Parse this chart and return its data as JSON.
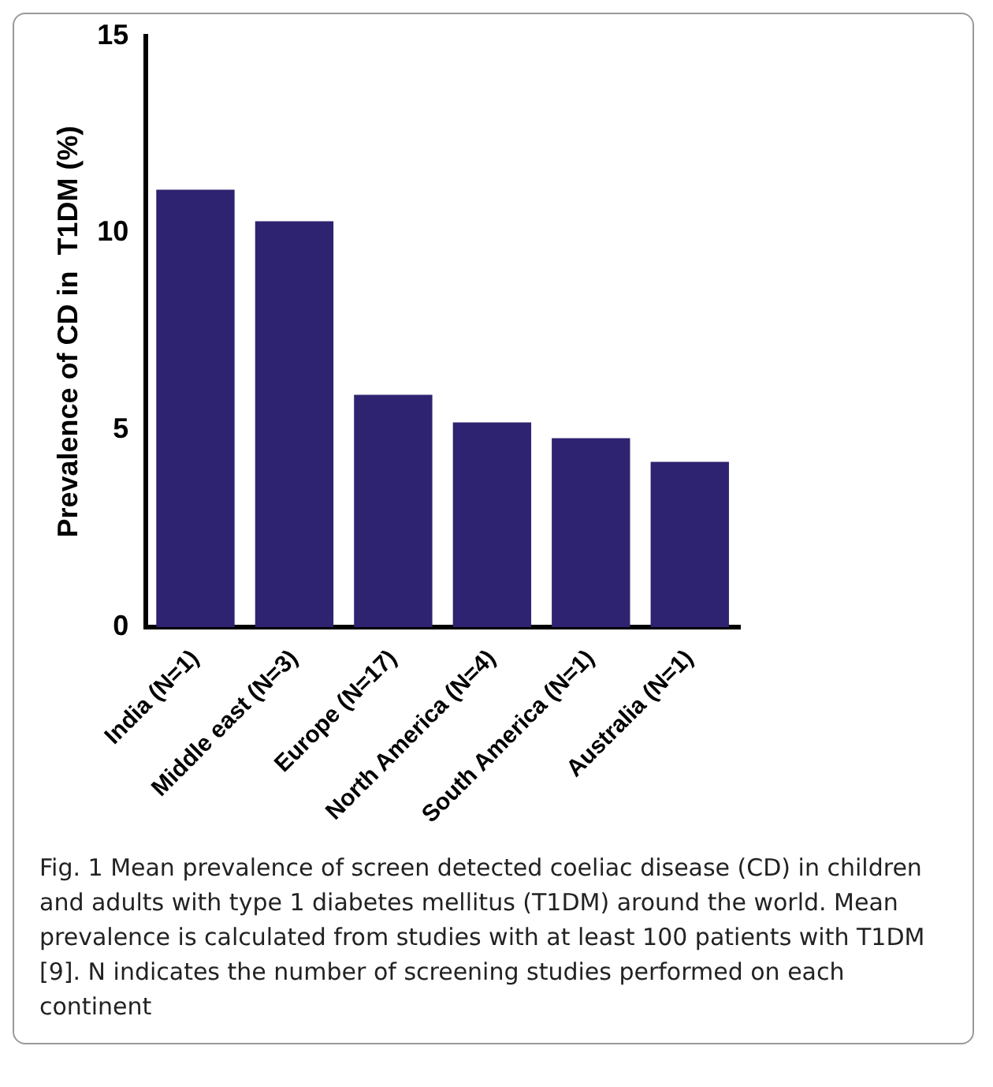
{
  "chart_data": {
    "type": "bar",
    "ylabel": "Prevalence of CD in  T1DM (%)",
    "categories": [
      "India (N=1)",
      "Middle east (N=3)",
      "Europe (N=17)",
      "North America (N=4)",
      "South America (N=1)",
      "Australia (N=1)"
    ],
    "values": [
      11.1,
      10.3,
      5.9,
      5.2,
      4.8,
      4.2
    ],
    "color": "#2e2370",
    "ylim": [
      0,
      15
    ],
    "yticks": [
      0,
      5,
      10,
      15
    ],
    "grid": false,
    "legend": false,
    "annotations": [
      "Fig. 1  Mean prevalence of screen detected coeliac disease (CD) in children and adults with type 1 diabetes mellitus (T1DM) around the world. Mean prevalence is calculated from studies with at least 100 patients with T1DM [9]. N indicates the number of screening studies performed on each continent"
    ]
  }
}
